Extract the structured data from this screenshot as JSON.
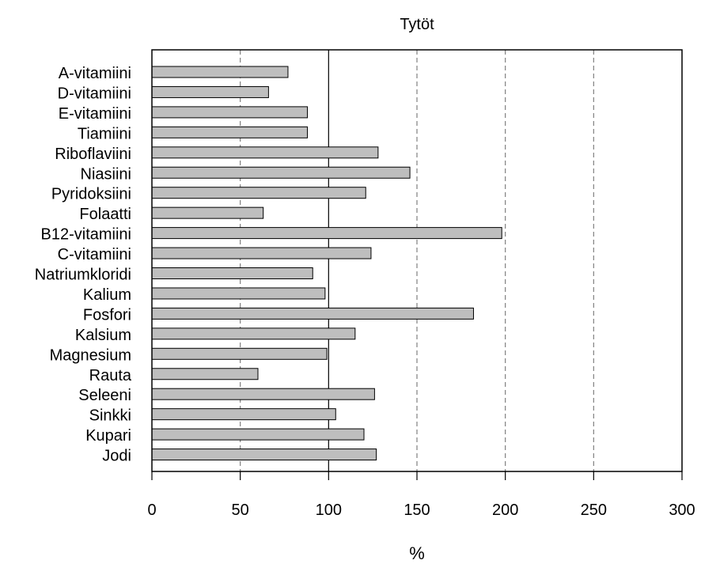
{
  "chart_data": {
    "type": "bar",
    "orientation": "horizontal",
    "title": "Tytöt",
    "xlabel": "%",
    "ylabel": "",
    "xlim": [
      0,
      300
    ],
    "x_ticks": [
      0,
      50,
      100,
      150,
      200,
      250,
      300
    ],
    "categories": [
      "A-vitamiini",
      "D-vitamiini",
      "E-vitamiini",
      "Tiamiini",
      "Riboflaviini",
      "Niasiini",
      "Pyridoksiini",
      "Folaatti",
      "B12-vitamiini",
      "C-vitamiini",
      "Natriumkloridi",
      "Kalium",
      "Fosfori",
      "Kalsium",
      "Magnesium",
      "Rauta",
      "Seleeni",
      "Sinkki",
      "Kupari",
      "Jodi"
    ],
    "values": [
      77,
      66,
      88,
      88,
      128,
      146,
      121,
      63,
      198,
      124,
      91,
      98,
      182,
      115,
      99,
      60,
      126,
      104,
      120,
      127
    ],
    "reference_line": 100,
    "dashed_gridlines": [
      50,
      150,
      200,
      250
    ],
    "grid": true,
    "bar_color": "#bebebe",
    "bar_border_color": "#000000"
  }
}
